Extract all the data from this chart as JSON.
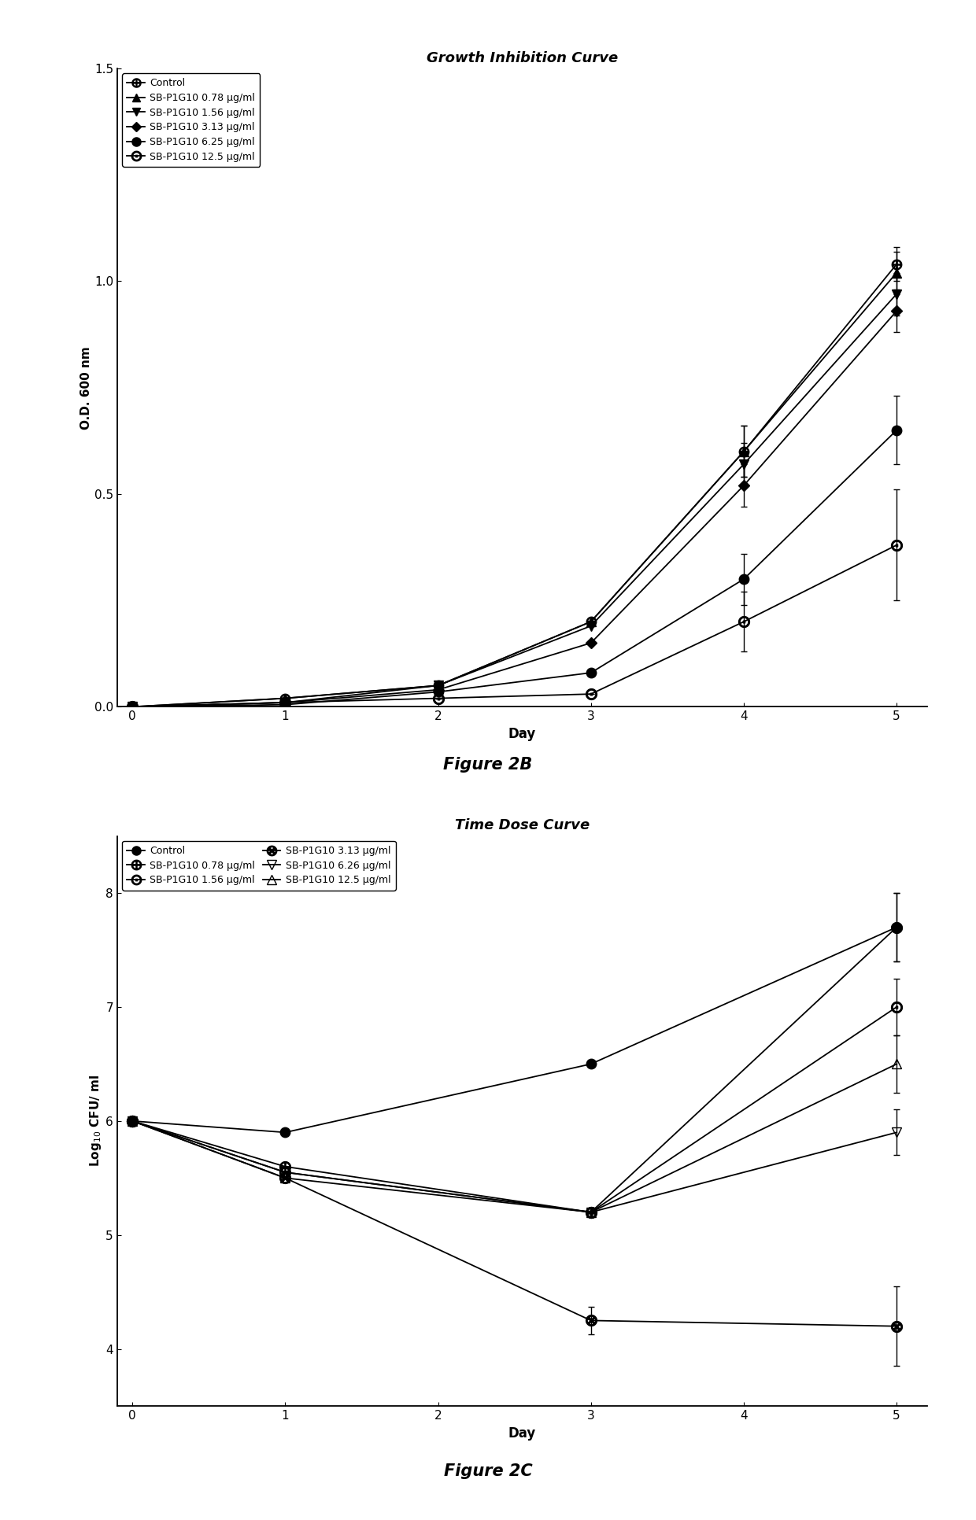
{
  "fig2b": {
    "title": "Growth Inhibition Curve",
    "xlabel": "Day",
    "ylabel": "O.D. 600 nm",
    "xlim": [
      -0.1,
      5.2
    ],
    "ylim": [
      0,
      1.5
    ],
    "yticks": [
      0.0,
      0.5,
      1.0,
      1.5
    ],
    "xticks": [
      0,
      1,
      2,
      3,
      4,
      5
    ],
    "series": [
      {
        "label": "Control",
        "x": [
          0,
          1,
          2,
          3,
          4,
          5
        ],
        "y": [
          0.0,
          0.02,
          0.05,
          0.2,
          0.6,
          1.04
        ],
        "yerr": [
          0,
          0,
          0,
          0,
          0.06,
          0.04
        ],
        "marker": "$\\bigoplus$",
        "marker_face": "black",
        "marker_edge": "black",
        "marker_size": 9,
        "color": "black",
        "linestyle": "-",
        "fillstyle": "full"
      },
      {
        "label": "SB-P1G10 0.78 μg/ml",
        "x": [
          0,
          1,
          2,
          3,
          4,
          5
        ],
        "y": [
          0.0,
          0.02,
          0.05,
          0.2,
          0.6,
          1.02
        ],
        "yerr": [
          0,
          0,
          0,
          0,
          0.06,
          0.05
        ],
        "marker": "^",
        "marker_face": "black",
        "marker_edge": "black",
        "marker_size": 8,
        "color": "black",
        "linestyle": "-",
        "fillstyle": "full"
      },
      {
        "label": "SB-P1G10 1.56 μg/ml",
        "x": [
          0,
          1,
          2,
          3,
          4,
          5
        ],
        "y": [
          0.0,
          0.01,
          0.05,
          0.19,
          0.57,
          0.97
        ],
        "yerr": [
          0,
          0,
          0,
          0,
          0.05,
          0.05
        ],
        "marker": "v",
        "marker_face": "black",
        "marker_edge": "black",
        "marker_size": 8,
        "color": "black",
        "linestyle": "-",
        "fillstyle": "full"
      },
      {
        "label": "SB-P1G10 3.13 μg/ml",
        "x": [
          0,
          1,
          2,
          3,
          4,
          5
        ],
        "y": [
          0.0,
          0.01,
          0.04,
          0.15,
          0.52,
          0.93
        ],
        "yerr": [
          0,
          0,
          0,
          0,
          0.05,
          0.05
        ],
        "marker": "D",
        "marker_face": "black",
        "marker_edge": "black",
        "marker_size": 7,
        "color": "black",
        "linestyle": "-",
        "fillstyle": "full"
      },
      {
        "label": "SB-P1G10 6.25 μg/ml",
        "x": [
          0,
          1,
          2,
          3,
          4,
          5
        ],
        "y": [
          0.0,
          0.005,
          0.035,
          0.08,
          0.3,
          0.65
        ],
        "yerr": [
          0,
          0,
          0,
          0,
          0.06,
          0.08
        ],
        "marker": "o",
        "marker_face": "black",
        "marker_edge": "black",
        "marker_size": 9,
        "color": "black",
        "linestyle": "-",
        "fillstyle": "full"
      },
      {
        "label": "SB-P1G10 12.5 μg/ml",
        "x": [
          0,
          1,
          2,
          3,
          4,
          5
        ],
        "y": [
          0.0,
          0.01,
          0.02,
          0.03,
          0.2,
          0.38
        ],
        "yerr": [
          0,
          0,
          0,
          0,
          0.07,
          0.13
        ],
        "marker": "$\\odot$",
        "marker_face": "black",
        "marker_edge": "black",
        "marker_size": 10,
        "color": "black",
        "linestyle": "-",
        "fillstyle": "full"
      }
    ]
  },
  "fig2c": {
    "title": "Time Dose Curve",
    "xlabel": "Day",
    "ylabel": "Log$_{10}$ CFU/ ml",
    "xlim": [
      -0.1,
      5.2
    ],
    "ylim": [
      3.5,
      8.5
    ],
    "yticks": [
      4,
      5,
      6,
      7,
      8
    ],
    "xticks": [
      0,
      1,
      2,
      3,
      4,
      5
    ],
    "series": [
      {
        "label": "Control",
        "x": [
          0,
          1,
          3,
          5
        ],
        "y": [
          6.0,
          5.9,
          6.5,
          7.7
        ],
        "yerr": [
          0,
          0,
          0,
          0.3
        ],
        "marker": "o",
        "marker_face": "black",
        "marker_edge": "black",
        "marker_size": 9,
        "color": "black",
        "linestyle": "-",
        "fillstyle": "full"
      },
      {
        "label": "SB-P1G10 0.78 μg/ml",
        "x": [
          0,
          1,
          3,
          5
        ],
        "y": [
          6.0,
          5.6,
          5.2,
          7.7
        ],
        "yerr": [
          0,
          0,
          0,
          0.3
        ],
        "marker": "$\\bigoplus$",
        "marker_face": "black",
        "marker_edge": "black",
        "marker_size": 10,
        "color": "black",
        "linestyle": "-",
        "fillstyle": "full"
      },
      {
        "label": "SB-P1G10 1.56 μg/ml",
        "x": [
          0,
          1,
          3,
          5
        ],
        "y": [
          6.0,
          5.55,
          5.2,
          7.0
        ],
        "yerr": [
          0,
          0,
          0,
          0.25
        ],
        "marker": "$\\odot$",
        "marker_face": "black",
        "marker_edge": "black",
        "marker_size": 10,
        "color": "black",
        "linestyle": "-",
        "fillstyle": "full"
      },
      {
        "label": "SB-P1G10 3.13 μg/ml",
        "x": [
          0,
          1,
          3,
          5
        ],
        "y": [
          6.0,
          5.5,
          4.25,
          4.2
        ],
        "yerr": [
          0,
          0,
          0.12,
          0.35
        ],
        "marker": "$\\otimes$",
        "marker_face": "black",
        "marker_edge": "black",
        "marker_size": 10,
        "color": "black",
        "linestyle": "-",
        "fillstyle": "full"
      },
      {
        "label": "SB-P1G10 6.26 μg/ml",
        "x": [
          0,
          1,
          3,
          5
        ],
        "y": [
          6.0,
          5.55,
          5.2,
          5.9
        ],
        "yerr": [
          0,
          0,
          0,
          0.2
        ],
        "marker": "v",
        "marker_face": "none",
        "marker_edge": "black",
        "marker_size": 9,
        "color": "black",
        "linestyle": "-",
        "fillstyle": "none"
      },
      {
        "label": "SB-P1G10 12.5 μg/ml",
        "x": [
          0,
          1,
          3,
          5
        ],
        "y": [
          6.0,
          5.5,
          5.2,
          6.5
        ],
        "yerr": [
          0,
          0,
          0,
          0.25
        ],
        "marker": "^",
        "marker_face": "none",
        "marker_edge": "black",
        "marker_size": 9,
        "color": "black",
        "linestyle": "-",
        "fillstyle": "none"
      }
    ]
  },
  "figure_label_2b": "Figure 2B",
  "figure_label_2c": "Figure 2C",
  "background_color": "#ffffff"
}
